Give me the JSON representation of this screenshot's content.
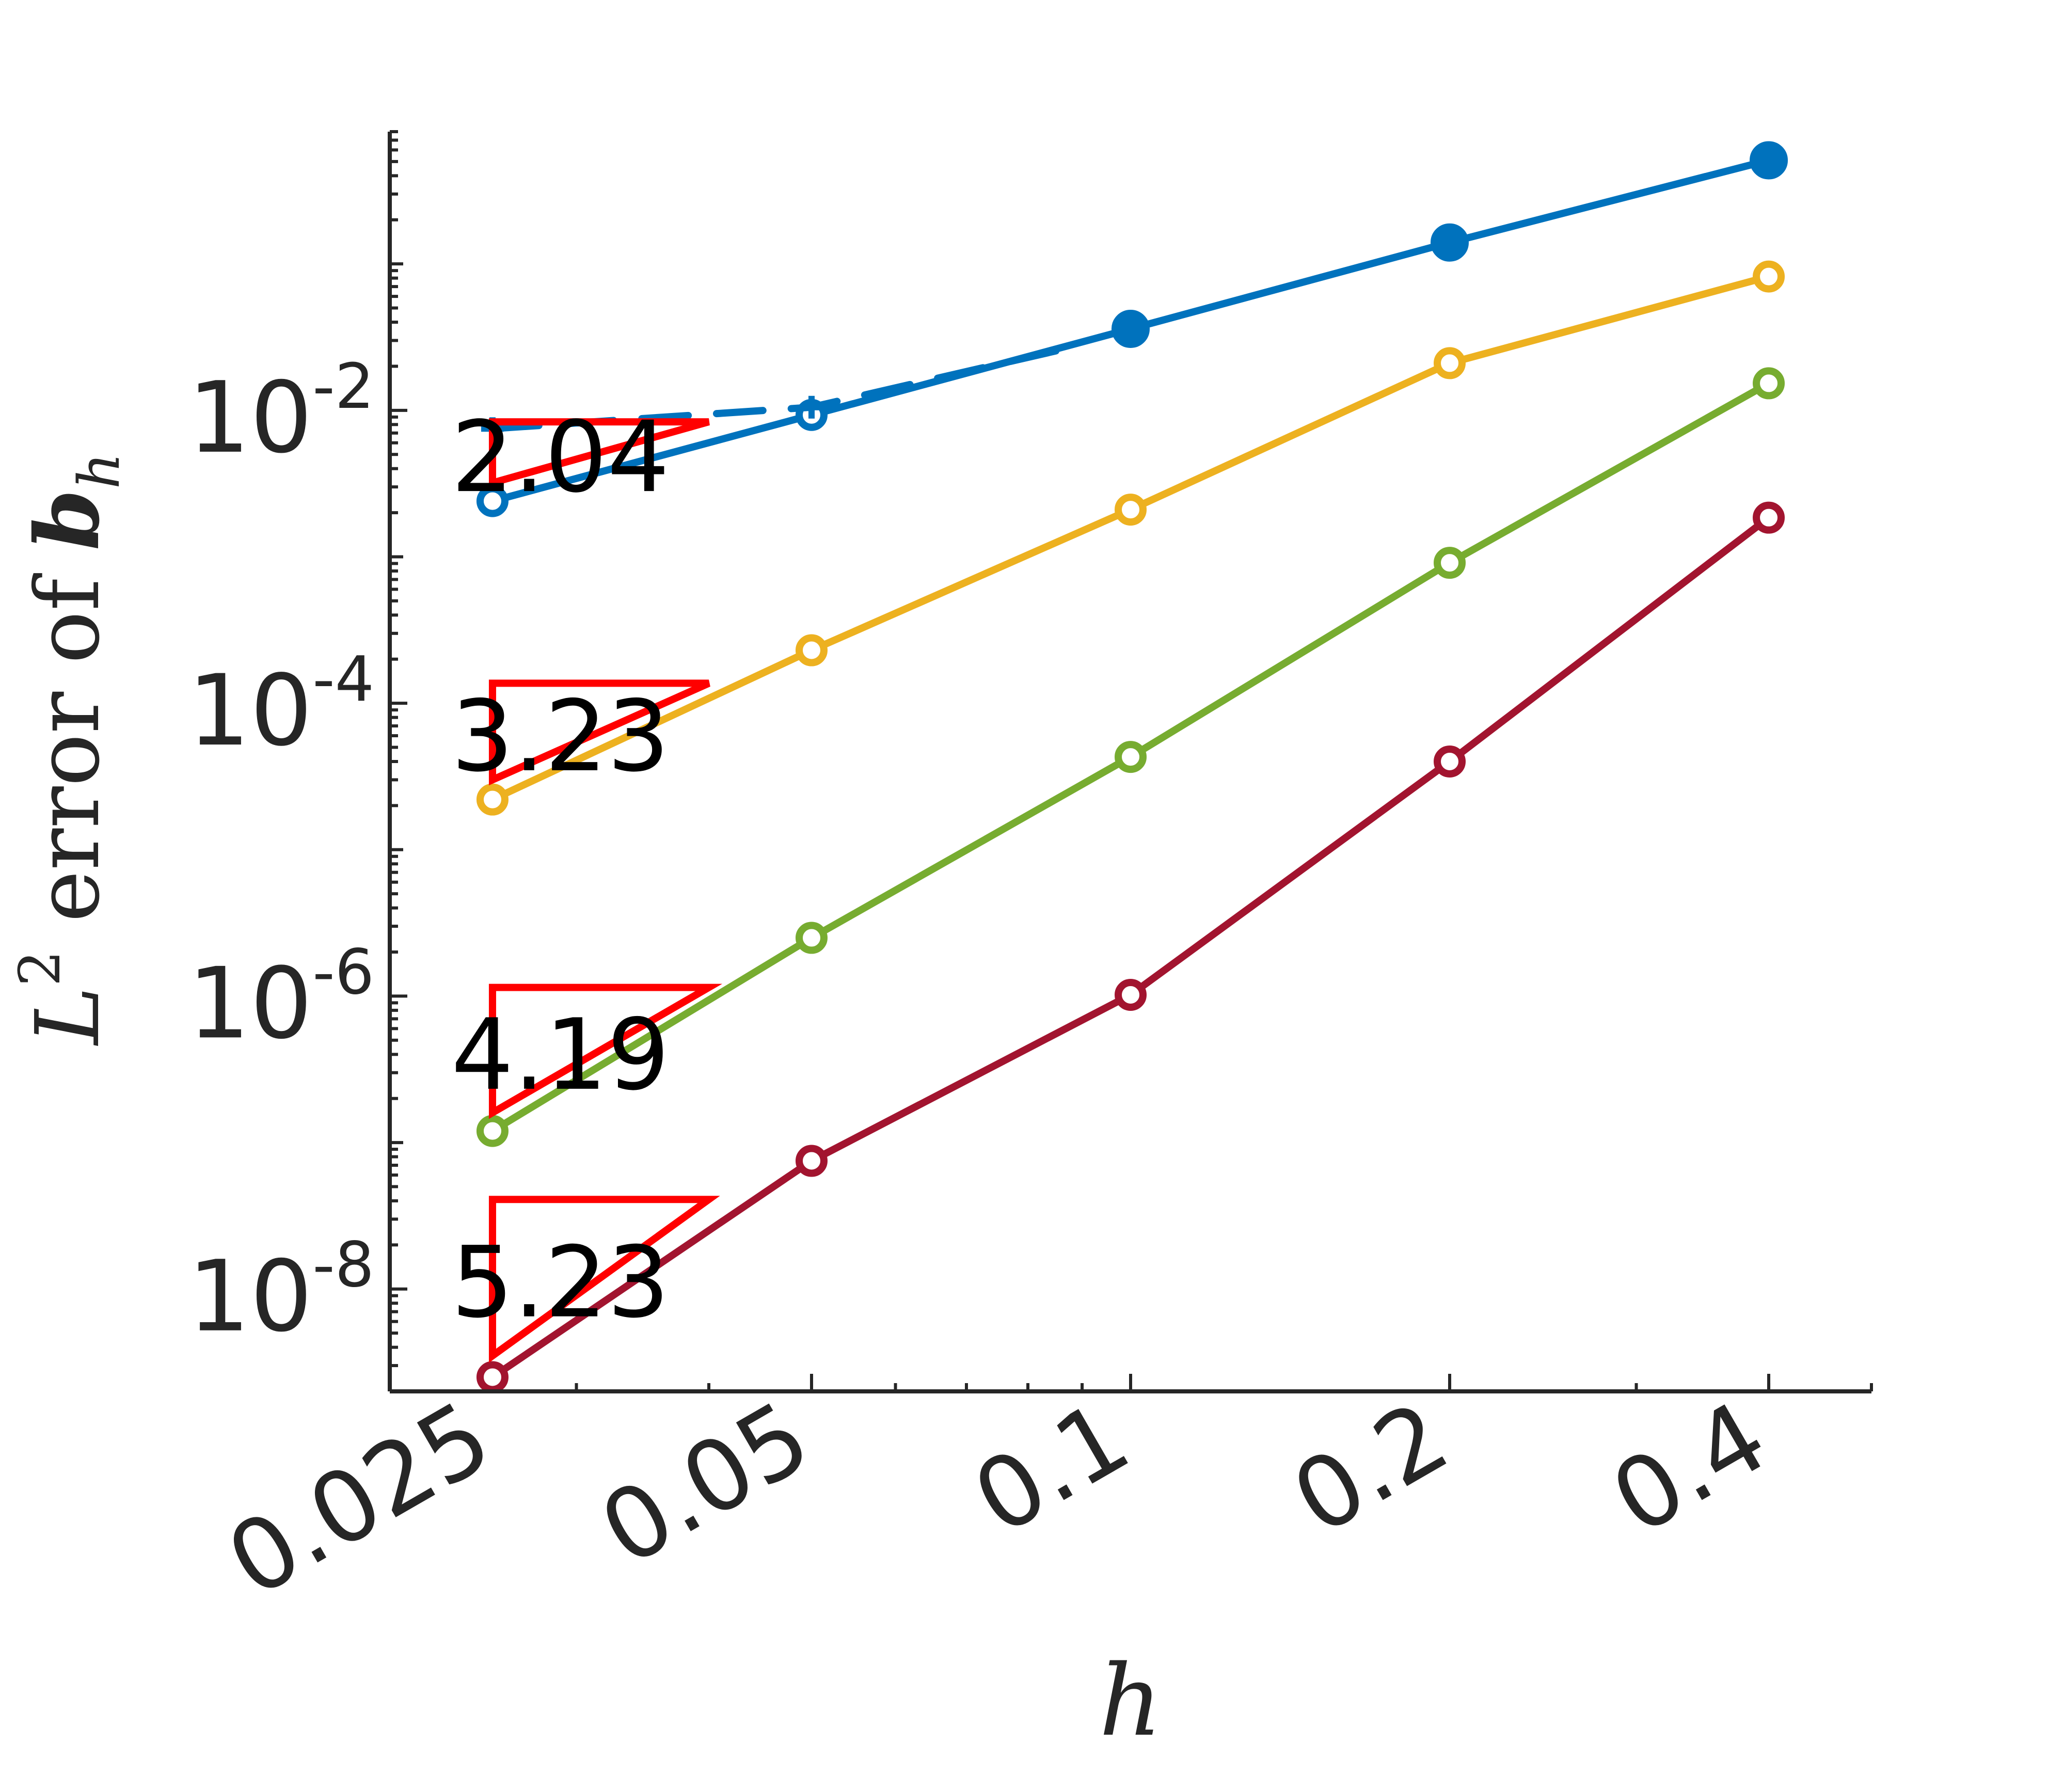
{
  "chart_data": {
    "type": "line",
    "xscale": "log",
    "yscale": "log",
    "xlabel": {
      "main": "h"
    },
    "ylabel": {
      "var": "L",
      "sup": "2",
      "text": " error of ",
      "sym": "b",
      "sub": "h"
    },
    "xlim": [
      0.02,
      0.5
    ],
    "ylim": [
      2e-09,
      0.8
    ],
    "x_ticks": [
      {
        "value": 0.025,
        "label": "0.025"
      },
      {
        "value": 0.05,
        "label": "0.05"
      },
      {
        "value": 0.1,
        "label": "0.1"
      },
      {
        "value": 0.2,
        "label": "0.2"
      },
      {
        "value": 0.4,
        "label": "0.4"
      }
    ],
    "y_ticks": [
      {
        "value": 0.01,
        "base": "10",
        "exp": "-2"
      },
      {
        "value": 0.0001,
        "base": "10",
        "exp": "-4"
      },
      {
        "value": 1e-06,
        "base": "10",
        "exp": "-6"
      },
      {
        "value": 1e-08,
        "base": "10",
        "exp": "-8"
      }
    ],
    "x": [
      0.025,
      0.05,
      0.1,
      0.2,
      0.4
    ],
    "series": [
      {
        "color": "#0072BD",
        "values": [
          0.0024,
          0.0093,
          0.036,
          0.14,
          0.51
        ],
        "markers": [
          "open",
          "open",
          "filled",
          "filled",
          "filled"
        ]
      },
      {
        "color": "#0072BD",
        "dashed": true,
        "x": [
          0.025,
          0.05,
          0.09
        ],
        "values": [
          0.0075,
          0.0105,
          0.028
        ]
      },
      {
        "color": "#EDB120",
        "values": [
          2.2e-05,
          0.00023,
          0.0021,
          0.021,
          0.082
        ],
        "markers": [
          "open",
          "open",
          "open",
          "open",
          "open"
        ]
      },
      {
        "color": "#77AC30",
        "values": [
          1.2e-07,
          2.5e-06,
          4.3e-05,
          0.00091,
          0.0153
        ],
        "markers": [
          "open",
          "open",
          "open",
          "open",
          "open"
        ]
      },
      {
        "color": "#A2142F",
        "values": [
          2.5e-09,
          7.5e-08,
          1.02e-06,
          4e-05,
          0.00185
        ],
        "markers": [
          "open",
          "open",
          "open",
          "open",
          "open"
        ]
      }
    ],
    "rate_triangles": [
      {
        "label": "2.04",
        "x0": 0.025,
        "x1": 0.04,
        "y0": 0.0032,
        "color": "#FF0000"
      },
      {
        "label": "3.23",
        "x0": 0.025,
        "x1": 0.04,
        "y0": 3e-05,
        "color": "#FF0000"
      },
      {
        "label": "4.19",
        "x0": 0.025,
        "x1": 0.04,
        "y0": 1.6e-07,
        "color": "#FF0000"
      },
      {
        "label": "5.23",
        "x0": 0.025,
        "x1": 0.04,
        "y0": 3.5e-09,
        "color": "#FF0000"
      }
    ]
  }
}
